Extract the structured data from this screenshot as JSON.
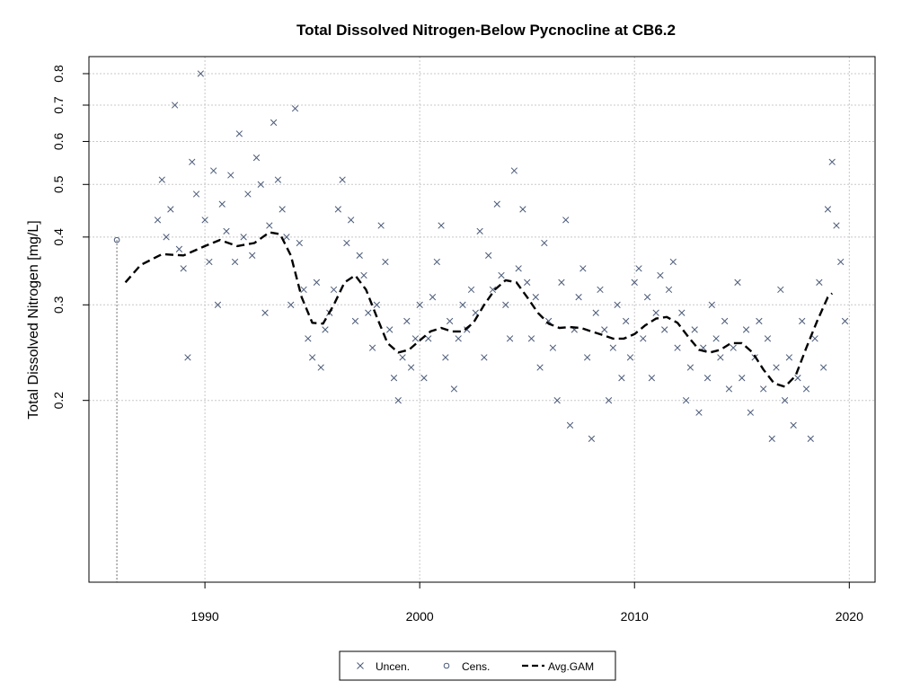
{
  "chart_data": {
    "type": "scatter",
    "title": "Total Dissolved Nitrogen-Below Pycnocline at CB6.2",
    "xlabel": "",
    "ylabel": "Total Dissolved Nitrogen [mg/L]",
    "y_scale": "log",
    "xlim": [
      1984.6,
      2021.2
    ],
    "ylim": [
      0.0925,
      0.86
    ],
    "x_ticks": [
      1990,
      2000,
      2010,
      2020
    ],
    "y_ticks": [
      0.2,
      0.3,
      0.4,
      0.5,
      0.6,
      0.7,
      0.8
    ],
    "grid": true,
    "legend_position": "bottom",
    "colors": {
      "points": "#4a5a78",
      "gam": "#000000",
      "grid": "#c8c8c8"
    },
    "legend": [
      {
        "label": "Uncen.",
        "marker": "x"
      },
      {
        "label": "Cens.",
        "marker": "circle"
      },
      {
        "label": "Avg.GAM",
        "marker": "dashed-line"
      }
    ],
    "censored": [
      {
        "x": 1985.9,
        "y": 0.395,
        "lower": 0.0925
      }
    ],
    "uncensored": [
      [
        1987.8,
        0.43
      ],
      [
        1988.0,
        0.51
      ],
      [
        1988.2,
        0.4
      ],
      [
        1988.4,
        0.45
      ],
      [
        1988.6,
        0.7
      ],
      [
        1988.8,
        0.38
      ],
      [
        1989.0,
        0.35
      ],
      [
        1989.2,
        0.24
      ],
      [
        1989.4,
        0.55
      ],
      [
        1989.6,
        0.48
      ],
      [
        1989.8,
        0.8
      ],
      [
        1990.0,
        0.43
      ],
      [
        1990.2,
        0.36
      ],
      [
        1990.4,
        0.53
      ],
      [
        1990.6,
        0.3
      ],
      [
        1990.8,
        0.46
      ],
      [
        1991.0,
        0.41
      ],
      [
        1991.2,
        0.52
      ],
      [
        1991.4,
        0.36
      ],
      [
        1991.6,
        0.62
      ],
      [
        1991.8,
        0.4
      ],
      [
        1992.0,
        0.48
      ],
      [
        1992.2,
        0.37
      ],
      [
        1992.4,
        0.56
      ],
      [
        1992.6,
        0.5
      ],
      [
        1992.8,
        0.29
      ],
      [
        1993.0,
        0.42
      ],
      [
        1993.2,
        0.65
      ],
      [
        1993.4,
        0.51
      ],
      [
        1993.6,
        0.45
      ],
      [
        1993.8,
        0.4
      ],
      [
        1994.0,
        0.3
      ],
      [
        1994.2,
        0.69
      ],
      [
        1994.4,
        0.39
      ],
      [
        1994.6,
        0.32
      ],
      [
        1994.8,
        0.26
      ],
      [
        1995.0,
        0.24
      ],
      [
        1995.2,
        0.33
      ],
      [
        1995.4,
        0.23
      ],
      [
        1995.6,
        0.27
      ],
      [
        1995.8,
        0.29
      ],
      [
        1996.0,
        0.32
      ],
      [
        1996.2,
        0.45
      ],
      [
        1996.4,
        0.51
      ],
      [
        1996.6,
        0.39
      ],
      [
        1996.8,
        0.43
      ],
      [
        1997.0,
        0.28
      ],
      [
        1997.2,
        0.37
      ],
      [
        1997.4,
        0.34
      ],
      [
        1997.6,
        0.29
      ],
      [
        1997.8,
        0.25
      ],
      [
        1998.0,
        0.3
      ],
      [
        1998.2,
        0.42
      ],
      [
        1998.4,
        0.36
      ],
      [
        1998.6,
        0.27
      ],
      [
        1998.8,
        0.22
      ],
      [
        1999.0,
        0.2
      ],
      [
        1999.2,
        0.24
      ],
      [
        1999.4,
        0.28
      ],
      [
        1999.6,
        0.23
      ],
      [
        1999.8,
        0.26
      ],
      [
        2000.0,
        0.3
      ],
      [
        2000.2,
        0.22
      ],
      [
        2000.4,
        0.26
      ],
      [
        2000.6,
        0.31
      ],
      [
        2000.8,
        0.36
      ],
      [
        2001.0,
        0.42
      ],
      [
        2001.2,
        0.24
      ],
      [
        2001.4,
        0.28
      ],
      [
        2001.6,
        0.21
      ],
      [
        2001.8,
        0.26
      ],
      [
        2002.0,
        0.3
      ],
      [
        2002.2,
        0.27
      ],
      [
        2002.4,
        0.32
      ],
      [
        2002.6,
        0.29
      ],
      [
        2002.8,
        0.41
      ],
      [
        2003.0,
        0.24
      ],
      [
        2003.2,
        0.37
      ],
      [
        2003.4,
        0.32
      ],
      [
        2003.6,
        0.46
      ],
      [
        2003.8,
        0.34
      ],
      [
        2004.0,
        0.3
      ],
      [
        2004.2,
        0.26
      ],
      [
        2004.4,
        0.53
      ],
      [
        2004.6,
        0.35
      ],
      [
        2004.8,
        0.45
      ],
      [
        2005.0,
        0.33
      ],
      [
        2005.2,
        0.26
      ],
      [
        2005.4,
        0.31
      ],
      [
        2005.6,
        0.23
      ],
      [
        2005.8,
        0.39
      ],
      [
        2006.0,
        0.28
      ],
      [
        2006.2,
        0.25
      ],
      [
        2006.4,
        0.2
      ],
      [
        2006.6,
        0.33
      ],
      [
        2006.8,
        0.43
      ],
      [
        2007.0,
        0.18
      ],
      [
        2007.2,
        0.27
      ],
      [
        2007.4,
        0.31
      ],
      [
        2007.6,
        0.35
      ],
      [
        2007.8,
        0.24
      ],
      [
        2008.0,
        0.17
      ],
      [
        2008.2,
        0.29
      ],
      [
        2008.4,
        0.32
      ],
      [
        2008.6,
        0.27
      ],
      [
        2008.8,
        0.2
      ],
      [
        2009.0,
        0.25
      ],
      [
        2009.2,
        0.3
      ],
      [
        2009.4,
        0.22
      ],
      [
        2009.6,
        0.28
      ],
      [
        2009.8,
        0.24
      ],
      [
        2010.0,
        0.33
      ],
      [
        2010.2,
        0.35
      ],
      [
        2010.4,
        0.26
      ],
      [
        2010.6,
        0.31
      ],
      [
        2010.8,
        0.22
      ],
      [
        2011.0,
        0.29
      ],
      [
        2011.2,
        0.34
      ],
      [
        2011.4,
        0.27
      ],
      [
        2011.6,
        0.32
      ],
      [
        2011.8,
        0.36
      ],
      [
        2012.0,
        0.25
      ],
      [
        2012.2,
        0.29
      ],
      [
        2012.4,
        0.2
      ],
      [
        2012.6,
        0.23
      ],
      [
        2012.8,
        0.27
      ],
      [
        2013.0,
        0.19
      ],
      [
        2013.2,
        0.25
      ],
      [
        2013.4,
        0.22
      ],
      [
        2013.6,
        0.3
      ],
      [
        2013.8,
        0.26
      ],
      [
        2014.0,
        0.24
      ],
      [
        2014.2,
        0.28
      ],
      [
        2014.4,
        0.21
      ],
      [
        2014.6,
        0.25
      ],
      [
        2014.8,
        0.33
      ],
      [
        2015.0,
        0.22
      ],
      [
        2015.2,
        0.27
      ],
      [
        2015.4,
        0.19
      ],
      [
        2015.6,
        0.24
      ],
      [
        2015.8,
        0.28
      ],
      [
        2016.0,
        0.21
      ],
      [
        2016.2,
        0.26
      ],
      [
        2016.4,
        0.17
      ],
      [
        2016.6,
        0.23
      ],
      [
        2016.8,
        0.32
      ],
      [
        2017.0,
        0.2
      ],
      [
        2017.2,
        0.24
      ],
      [
        2017.4,
        0.18
      ],
      [
        2017.6,
        0.22
      ],
      [
        2017.8,
        0.28
      ],
      [
        2018.0,
        0.21
      ],
      [
        2018.2,
        0.17
      ],
      [
        2018.4,
        0.26
      ],
      [
        2018.6,
        0.33
      ],
      [
        2018.8,
        0.23
      ],
      [
        2019.0,
        0.45
      ],
      [
        2019.2,
        0.55
      ],
      [
        2019.4,
        0.42
      ],
      [
        2019.6,
        0.36
      ],
      [
        2019.8,
        0.28
      ]
    ],
    "gam": [
      [
        1986.3,
        0.33
      ],
      [
        1987.0,
        0.355
      ],
      [
        1988.0,
        0.372
      ],
      [
        1989.0,
        0.37
      ],
      [
        1990.0,
        0.385
      ],
      [
        1990.7,
        0.395
      ],
      [
        1991.5,
        0.385
      ],
      [
        1992.3,
        0.39
      ],
      [
        1993.0,
        0.408
      ],
      [
        1993.5,
        0.405
      ],
      [
        1994.0,
        0.37
      ],
      [
        1994.5,
        0.31
      ],
      [
        1995.0,
        0.278
      ],
      [
        1995.5,
        0.277
      ],
      [
        1996.0,
        0.3
      ],
      [
        1996.5,
        0.33
      ],
      [
        1997.0,
        0.34
      ],
      [
        1997.5,
        0.32
      ],
      [
        1998.0,
        0.285
      ],
      [
        1998.5,
        0.255
      ],
      [
        1999.0,
        0.245
      ],
      [
        1999.5,
        0.248
      ],
      [
        2000.0,
        0.258
      ],
      [
        2000.5,
        0.268
      ],
      [
        2001.0,
        0.272
      ],
      [
        2001.5,
        0.268
      ],
      [
        2002.0,
        0.268
      ],
      [
        2002.5,
        0.278
      ],
      [
        2003.0,
        0.3
      ],
      [
        2003.5,
        0.32
      ],
      [
        2004.0,
        0.333
      ],
      [
        2004.5,
        0.33
      ],
      [
        2005.0,
        0.31
      ],
      [
        2005.5,
        0.29
      ],
      [
        2006.0,
        0.277
      ],
      [
        2006.5,
        0.272
      ],
      [
        2007.0,
        0.273
      ],
      [
        2007.5,
        0.272
      ],
      [
        2008.0,
        0.268
      ],
      [
        2008.5,
        0.264
      ],
      [
        2009.0,
        0.26
      ],
      [
        2009.5,
        0.26
      ],
      [
        2010.0,
        0.265
      ],
      [
        2010.5,
        0.275
      ],
      [
        2011.0,
        0.283
      ],
      [
        2011.5,
        0.285
      ],
      [
        2012.0,
        0.278
      ],
      [
        2012.5,
        0.262
      ],
      [
        2013.0,
        0.248
      ],
      [
        2013.5,
        0.245
      ],
      [
        2014.0,
        0.248
      ],
      [
        2014.5,
        0.255
      ],
      [
        2015.0,
        0.255
      ],
      [
        2015.5,
        0.245
      ],
      [
        2016.0,
        0.228
      ],
      [
        2016.5,
        0.215
      ],
      [
        2017.0,
        0.212
      ],
      [
        2017.5,
        0.222
      ],
      [
        2018.0,
        0.25
      ],
      [
        2018.5,
        0.28
      ],
      [
        2019.0,
        0.31
      ],
      [
        2019.2,
        0.315
      ]
    ]
  }
}
